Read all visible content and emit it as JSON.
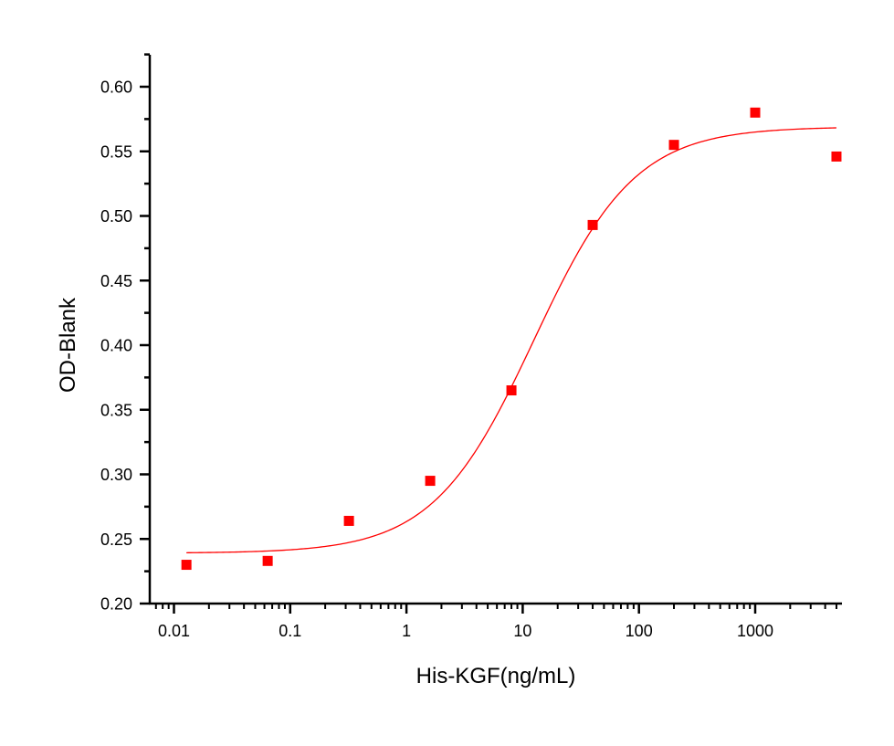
{
  "chart_data": {
    "type": "scatter",
    "title": "",
    "xlabel": "His-KGF(ng/mL)",
    "ylabel": "OD-Blank",
    "xscale": "log",
    "xlim": [
      0.007,
      5500
    ],
    "ylim": [
      0.2,
      0.625
    ],
    "grid": false,
    "legend": null,
    "x_ticks": [
      {
        "value": 0.01,
        "label": "0.01"
      },
      {
        "value": 0.1,
        "label": "0.1"
      },
      {
        "value": 1,
        "label": "1"
      },
      {
        "value": 10,
        "label": "10"
      },
      {
        "value": 100,
        "label": "100"
      },
      {
        "value": 1000,
        "label": "1000"
      }
    ],
    "y_ticks": [
      {
        "value": 0.2,
        "label": "0.20"
      },
      {
        "value": 0.25,
        "label": "0.25"
      },
      {
        "value": 0.3,
        "label": "0.30"
      },
      {
        "value": 0.35,
        "label": "0.35"
      },
      {
        "value": 0.4,
        "label": "0.40"
      },
      {
        "value": 0.45,
        "label": "0.45"
      },
      {
        "value": 0.5,
        "label": "0.50"
      },
      {
        "value": 0.55,
        "label": "0.55"
      },
      {
        "value": 0.6,
        "label": "0.60"
      }
    ],
    "series": [
      {
        "name": "data",
        "kind": "scatter",
        "marker": "square",
        "color": "#ff0000",
        "x": [
          0.0128,
          0.064,
          0.32,
          1.6,
          8,
          40,
          200,
          1000,
          5000
        ],
        "y": [
          0.23,
          0.233,
          0.264,
          0.295,
          0.365,
          0.493,
          0.555,
          0.58,
          0.546
        ]
      },
      {
        "name": "4PL fit",
        "kind": "line",
        "color": "#ff0000",
        "model": {
          "bottom": 0.239,
          "top": 0.569,
          "ec50": 12.5,
          "hill": 1.0
        },
        "x_range": [
          0.0128,
          5000
        ]
      }
    ]
  }
}
